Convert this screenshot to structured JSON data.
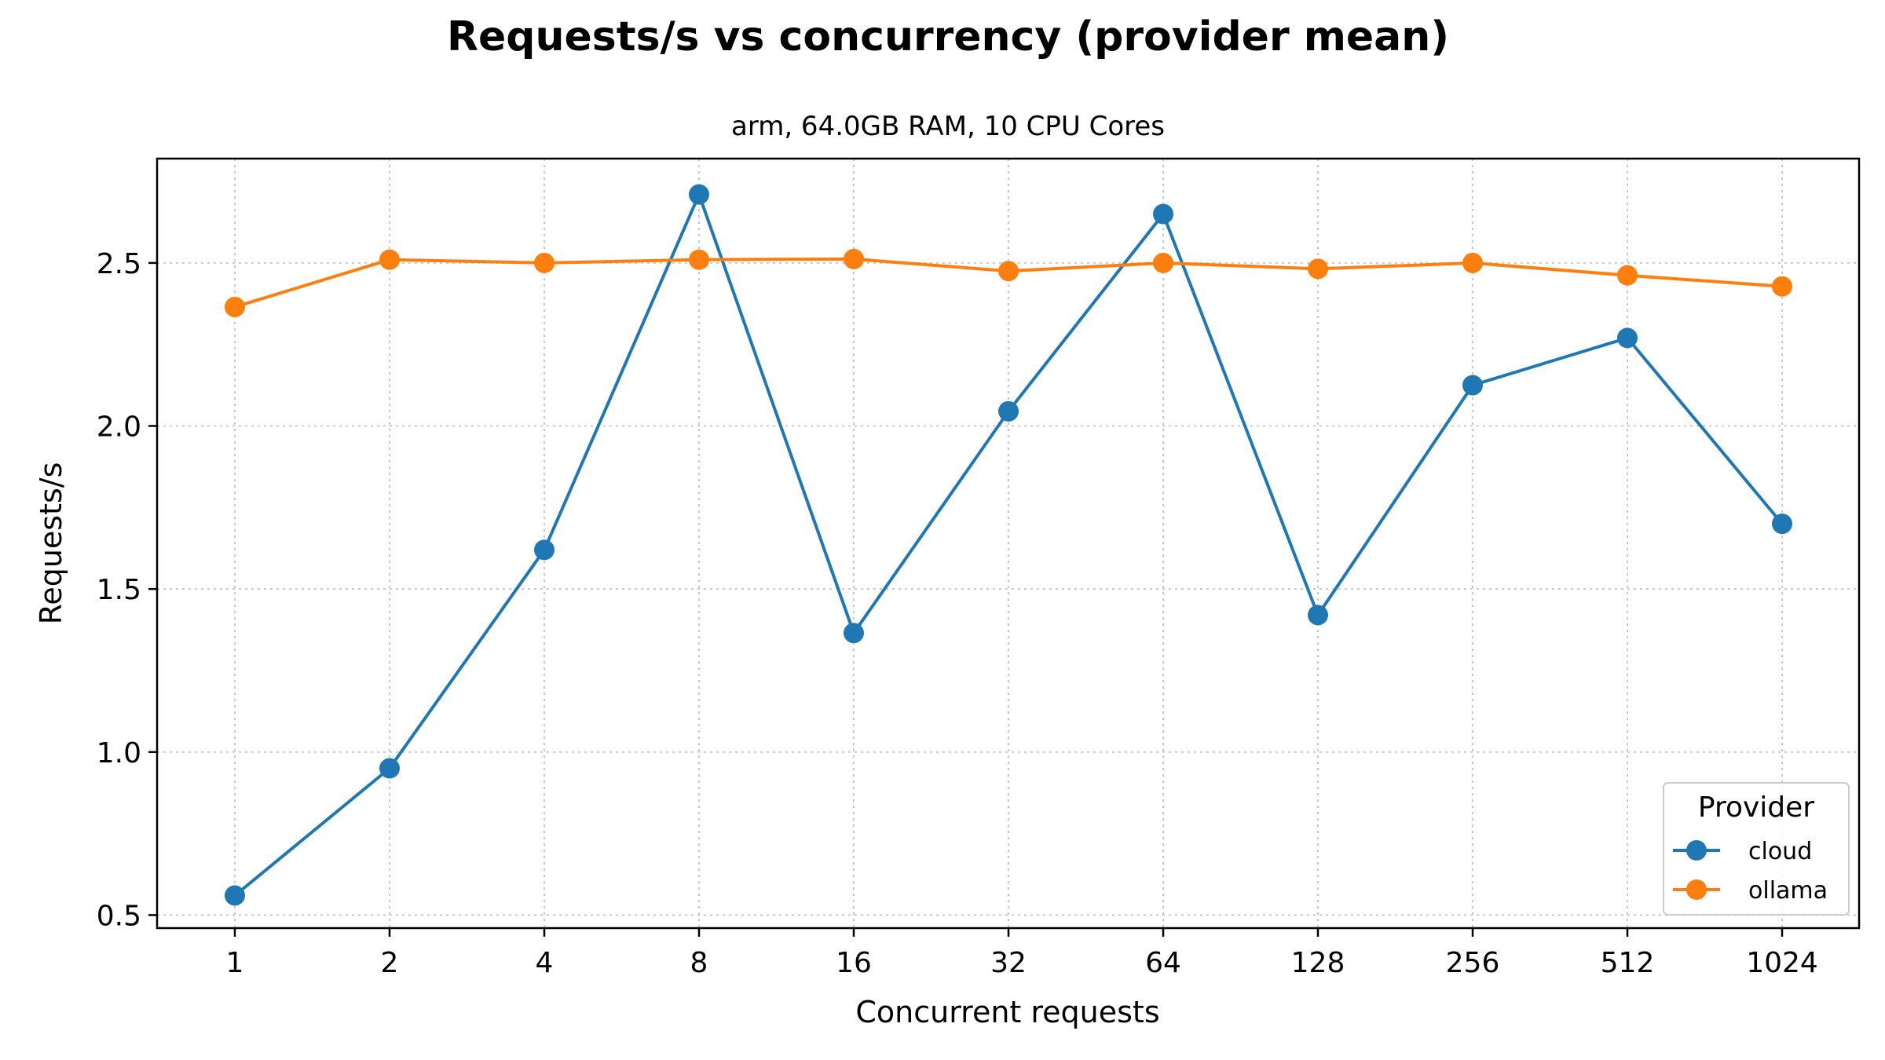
{
  "chart_data": {
    "type": "line",
    "title": "Requests/s vs concurrency (provider mean)",
    "subtitle": "arm, 64.0GB RAM, 10 CPU Cores",
    "xlabel": "Concurrent requests",
    "ylabel": "Requests/s",
    "x": [
      "1",
      "2",
      "4",
      "8",
      "16",
      "32",
      "64",
      "128",
      "256",
      "512",
      "1024"
    ],
    "yticks": [
      "0.5",
      "1.0",
      "1.5",
      "2.0",
      "2.5"
    ],
    "ylim": [
      0.46,
      2.82
    ],
    "grid": true,
    "legend_title": "Provider",
    "legend_position": "lower-right",
    "series": [
      {
        "name": "cloud",
        "color": "#1f77b4",
        "values": [
          0.56,
          0.95,
          1.62,
          2.71,
          1.365,
          2.045,
          2.65,
          1.42,
          2.125,
          2.27,
          1.7
        ]
      },
      {
        "name": "ollama",
        "color": "#ff7f0e",
        "values": [
          2.365,
          2.51,
          2.5,
          2.51,
          2.512,
          2.475,
          2.5,
          2.482,
          2.5,
          2.462,
          2.428
        ]
      }
    ]
  }
}
